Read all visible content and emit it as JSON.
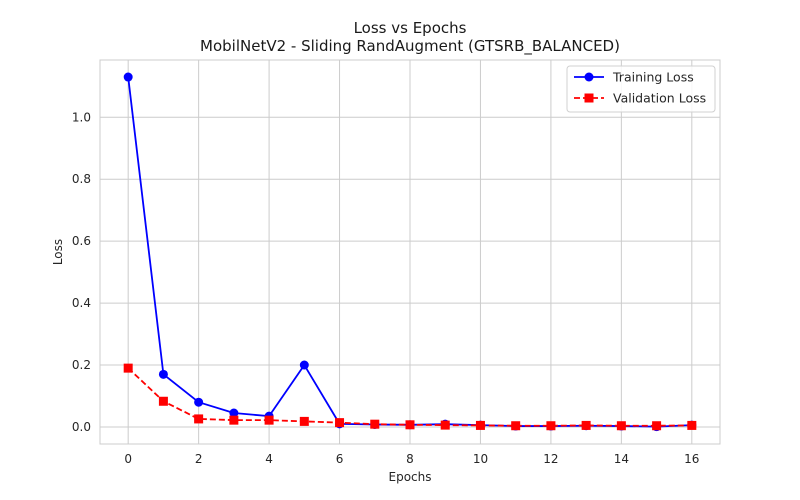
{
  "chart_data": {
    "type": "line",
    "title": "Loss vs Epochs",
    "subtitle": "MobilNetV2 - Sliding RandAugment (GTSRB_BALANCED)",
    "xlabel": "Epochs",
    "ylabel": "Loss",
    "x": [
      0,
      1,
      2,
      3,
      4,
      5,
      6,
      7,
      8,
      9,
      10,
      11,
      12,
      13,
      14,
      15,
      16
    ],
    "xlim": [
      -0.8,
      16.8
    ],
    "ylim": [
      -0.055,
      1.185
    ],
    "xticks": [
      0,
      2,
      4,
      6,
      8,
      10,
      12,
      14,
      16
    ],
    "xtick_labels": [
      "0",
      "2",
      "4",
      "6",
      "8",
      "10",
      "12",
      "14",
      "16"
    ],
    "yticks": [
      0.0,
      0.2,
      0.4,
      0.6,
      0.8,
      1.0
    ],
    "ytick_labels": [
      "0.0",
      "0.2",
      "0.4",
      "0.6",
      "0.8",
      "1.0"
    ],
    "grid": true,
    "legend_position": "top-right",
    "series": [
      {
        "name": "Training Loss",
        "color": "#0000ff",
        "marker": "circle",
        "line_style": "solid",
        "values": [
          1.13,
          0.17,
          0.08,
          0.045,
          0.035,
          0.2,
          0.01,
          0.008,
          0.007,
          0.009,
          0.006,
          0.003,
          0.003,
          0.004,
          0.003,
          0.001,
          0.006
        ]
      },
      {
        "name": "Validation Loss",
        "color": "#ff0000",
        "marker": "square",
        "line_style": "dashed",
        "values": [
          0.19,
          0.083,
          0.026,
          0.022,
          0.022,
          0.018,
          0.014,
          0.009,
          0.007,
          0.006,
          0.005,
          0.004,
          0.004,
          0.005,
          0.004,
          0.004,
          0.005
        ]
      }
    ]
  }
}
